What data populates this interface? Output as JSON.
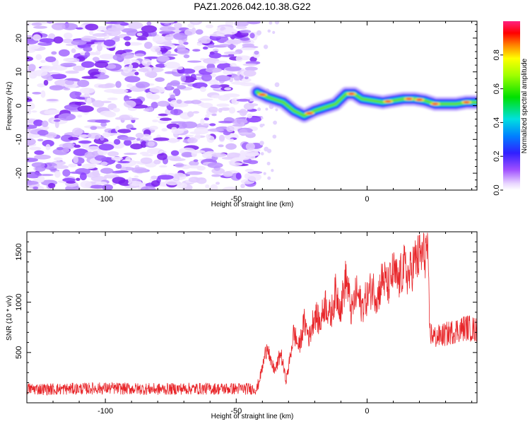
{
  "title": "PAZ1.2026.042.10.38.G22",
  "colors": {
    "snr_line": "#e8262a",
    "background": "#ffffff",
    "axis": "#000000"
  },
  "chart_data": [
    {
      "type": "heatmap",
      "name": "spectrogram",
      "xlabel": "Height of straight line (km)",
      "ylabel": "Frequency (Hz)",
      "xlim": [
        -130,
        42
      ],
      "ylim": [
        -25,
        25
      ],
      "x_ticks": [
        -100,
        -50,
        0
      ],
      "x_tick_labels": [
        "-100",
        "-50",
        "0"
      ],
      "y_ticks": [
        -20,
        -10,
        0,
        10,
        20
      ],
      "y_tick_labels": [
        "-20",
        "-10",
        "0",
        "10",
        "20"
      ],
      "noise_region_x": [
        -130,
        -42
      ],
      "signal_track": {
        "x": [
          -42,
          -38,
          -32,
          -28,
          -24,
          -20,
          -16,
          -12,
          -8,
          -5,
          -2,
          2,
          6,
          10,
          14,
          18,
          22,
          26,
          30,
          34,
          38,
          42
        ],
        "freq": [
          4,
          2.5,
          1,
          -1.5,
          -3,
          -1.5,
          -0.5,
          0.5,
          3.5,
          3.5,
          2,
          1.5,
          1,
          1.5,
          2,
          2,
          1.5,
          0.5,
          0.5,
          0.5,
          1,
          1
        ]
      },
      "colorbar": {
        "label": "Normalized spectral amplitude",
        "range": [
          0,
          1
        ],
        "ticks": [
          0.0,
          0.2,
          0.4,
          0.6,
          0.8
        ],
        "tick_labels": [
          "0.0",
          "0.2",
          "0.4",
          "0.6",
          "0.8"
        ]
      }
    },
    {
      "type": "line",
      "name": "snr",
      "xlabel": "Height of straight line (km)",
      "ylabel": "SNR (10 * v/v)",
      "xlim": [
        -130,
        42
      ],
      "ylim": [
        0,
        1700
      ],
      "x_ticks": [
        -100,
        -50,
        0
      ],
      "x_tick_labels": [
        "-100",
        "-50",
        "0"
      ],
      "y_ticks": [
        500,
        1000,
        1500
      ],
      "y_tick_labels": [
        "500",
        "1000",
        "1500"
      ],
      "series": [
        {
          "name": "SNR",
          "x": [
            -130,
            -120,
            -110,
            -100,
            -90,
            -80,
            -70,
            -60,
            -50,
            -42,
            -40,
            -38,
            -37,
            -35,
            -33,
            -31,
            -30,
            -28,
            -26,
            -24,
            -22,
            -20,
            -18,
            -16,
            -14,
            -12,
            -10,
            -8,
            -6,
            -4,
            -2,
            0,
            2,
            4,
            6,
            8,
            10,
            12,
            14,
            16,
            18,
            20,
            22,
            23,
            24,
            26,
            30,
            34,
            38,
            42
          ],
          "values": [
            140,
            135,
            140,
            145,
            140,
            135,
            140,
            140,
            140,
            140,
            350,
            600,
            400,
            320,
            500,
            220,
            350,
            700,
            550,
            800,
            650,
            900,
            780,
            1000,
            850,
            1100,
            950,
            1250,
            900,
            1100,
            950,
            1050,
            1150,
            1050,
            1250,
            1150,
            1300,
            1200,
            1350,
            1250,
            1400,
            1450,
            1480,
            1550,
            700,
            650,
            680,
            720,
            750,
            720
          ]
        }
      ]
    }
  ]
}
